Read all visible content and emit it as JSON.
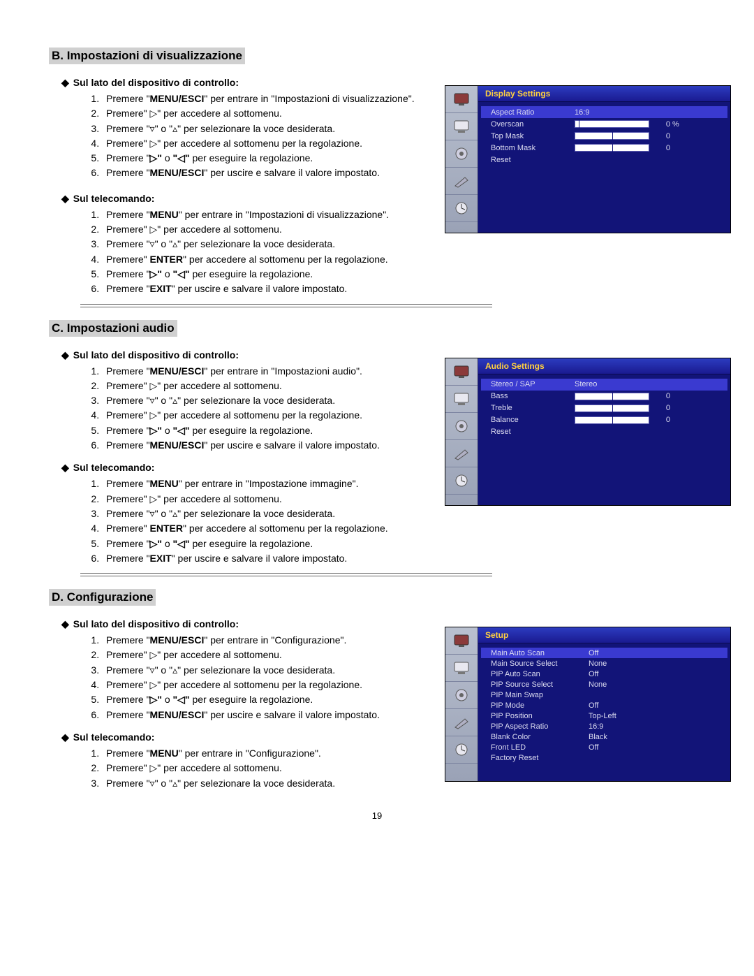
{
  "page_number": "19",
  "symbols": {
    "diamond": "◆",
    "right": "▷",
    "left": "◁",
    "down": "▿",
    "up": "▵"
  },
  "sectionB": {
    "title": "B. Impostazioni di visualizzazione",
    "h1": "Sul lato del dispositivo di controllo:",
    "b1_1a": "Premere \"",
    "b1_1b": "MENU/ESCI",
    "b1_1c": "\" per entrare in \"Impostazioni di visualizzazione\".",
    "b1_2": "Premere\" ▷\" per accedere al sottomenu.",
    "b1_3": "Premere \"▿\" o \"▵\" per selezionare la voce desiderata.",
    "b1_4": "Premere\" ▷\" per accedere al sottomenu per la regolazione.",
    "b1_5a": "Premere \"",
    "b1_5b": "▷\" ",
    "b1_5c": "o ",
    "b1_5d": "\"◁\"",
    "b1_5e": " per eseguire la regolazione.",
    "b1_6a": "Premere \"",
    "b1_6b": "MENU/ESCI",
    "b1_6c": "\" per uscire e salvare il valore impostato.",
    "h2": "Sul telecomando:",
    "b2_1a": "Premere \"",
    "b2_1b": "MENU",
    "b2_1c": "\" per entrare in \"Impostazioni di visualizzazione\".",
    "b2_2": "Premere\" ▷\" per accedere al sottomenu.",
    "b2_3": "Premere \"▿\" o \"▵\" per selezionare la voce desiderata.",
    "b2_4a": "Premere\" ",
    "b2_4b": "ENTER",
    "b2_4c": "\" per accedere al sottomenu per la regolazione.",
    "b2_5a": "Premere \"",
    "b2_5b": "▷\" ",
    "b2_5c": "o ",
    "b2_5d": "\"◁\"",
    "b2_5e": " per eseguire la regolazione.",
    "b2_6a": "Premere \"",
    "b2_6b": "EXIT",
    "b2_6c": "\" per uscire e salvare il valore impostato."
  },
  "sectionC": {
    "title": "C. Impostazioni audio",
    "h1": "Sul lato del dispositivo di controllo:",
    "c1_1a": "Premere \"",
    "c1_1b": "MENU/ESCI",
    "c1_1c": "\" per entrare in \"Impostazioni audio\".",
    "c1_2": "Premere\" ▷\" per accedere al sottomenu.",
    "c1_3": "Premere \"▿\" o \"▵\" per selezionare la voce desiderata.",
    "c1_4": "Premere\" ▷\" per accedere al sottomenu per la regolazione.",
    "c1_5a": "Premere \"",
    "c1_5b": "▷\" ",
    "c1_5c": "o ",
    "c1_5d": "\"◁\"",
    "c1_5e": " per eseguire la regolazione.",
    "c1_6a": "Premere \"",
    "c1_6b": "MENU/ESCI",
    "c1_6c": "\" per uscire e salvare il valore impostato.",
    "h2": "Sul telecomando:",
    "c2_1a": "Premere \"",
    "c2_1b": "MENU",
    "c2_1c": "\" per entrare in \"Impostazione immagine\".",
    "c2_2": "Premere\" ▷\" per accedere al sottomenu.",
    "c2_3": "Premere \"▿\" o \"▵\" per selezionare la voce desiderata.",
    "c2_4a": "Premere\" ",
    "c2_4b": "ENTER",
    "c2_4c": "\" per accedere al sottomenu per la regolazione.",
    "c2_5a": "Premere \"",
    "c2_5b": "▷\" ",
    "c2_5c": "o ",
    "c2_5d": "\"◁\"",
    "c2_5e": " per eseguire la regolazione.",
    "c2_6a": "Premere \"",
    "c2_6b": "EXIT",
    "c2_6c": "\" per uscire e salvare il valore impostato."
  },
  "sectionD": {
    "title": "D. Configurazione",
    "h1": "Sul lato del dispositivo di controllo:",
    "d1_1a": "Premere \"",
    "d1_1b": "MENU/ESCI",
    "d1_1c": "\" per entrare in \"Configurazione\".",
    "d1_2": "Premere\" ▷\" per accedere al sottomenu.",
    "d1_3": "Premere \"▿\" o \"▵\" per selezionare la voce desiderata.",
    "d1_4": "Premere\" ▷\" per accedere al sottomenu per la regolazione.",
    "d1_5a": "Premere \"",
    "d1_5b": "▷\" ",
    "d1_5c": "o ",
    "d1_5d": "\"◁\"",
    "d1_5e": " per eseguire la regolazione.",
    "d1_6a": "Premere \"",
    "d1_6b": "MENU/ESCI",
    "d1_6c": "\" per uscire e salvare il valore impostato.",
    "h2": "Sul telecomando:",
    "d2_1a": "Premere \"",
    "d2_1b": "MENU",
    "d2_1c": "\" per entrare in \"Configurazione\".",
    "d2_2": "Premere\" ▷\" per accedere al sottomenu.",
    "d2_3": "Premere \"▿\" o \"▵\" per selezionare la voce desiderata."
  },
  "osdB": {
    "title": "Display Settings",
    "rows": [
      {
        "label": "Aspect Ratio",
        "value": "16:9",
        "hl": true
      },
      {
        "label": "Overscan",
        "bar": true,
        "mark": 5,
        "num": "0",
        "pct": "%"
      },
      {
        "label": "Top Mask",
        "bar": true,
        "mark": 50,
        "num": "0",
        "pct": ""
      },
      {
        "label": "Bottom Mask",
        "bar": true,
        "mark": 50,
        "num": "0",
        "pct": ""
      },
      {
        "label": "Reset"
      }
    ]
  },
  "osdC": {
    "title": "Audio Settings",
    "rows": [
      {
        "label": "Stereo / SAP",
        "value": "Stereo",
        "hl": true
      },
      {
        "label": "Bass",
        "bar": true,
        "mark": 50,
        "num": "0"
      },
      {
        "label": "Treble",
        "bar": true,
        "mark": 50,
        "num": "0"
      },
      {
        "label": "Balance",
        "bar": true,
        "mark": 50,
        "num": "0"
      },
      {
        "label": "Reset"
      }
    ]
  },
  "osdD": {
    "title": "Setup",
    "rows": [
      {
        "label": "Main Auto Scan",
        "value": "Off",
        "hl": true
      },
      {
        "label": "Main Source Select",
        "value": "None"
      },
      {
        "label": "PIP Auto Scan",
        "value": "Off"
      },
      {
        "label": "PIP Source Select",
        "value": "None"
      },
      {
        "label": "PIP Main Swap",
        "value": ""
      },
      {
        "label": "PIP Mode",
        "value": "Off"
      },
      {
        "label": "PIP Position",
        "value": "Top-Left"
      },
      {
        "label": "PIP Aspect Ratio",
        "value": "16:9"
      },
      {
        "label": "Blank Color",
        "value": "Black"
      },
      {
        "label": "Front LED",
        "value": "Off"
      },
      {
        "label": "Factory Reset",
        "value": ""
      }
    ]
  },
  "osd_colors": {
    "bg": "#121478",
    "title_bg": "#2c3cc0",
    "title_fg": "#ffd040",
    "text": "#dcdcf0",
    "hl": "#3a3ad0",
    "bar_bg": "#ffffff",
    "sidebar_bg": "#b9c0cf"
  }
}
